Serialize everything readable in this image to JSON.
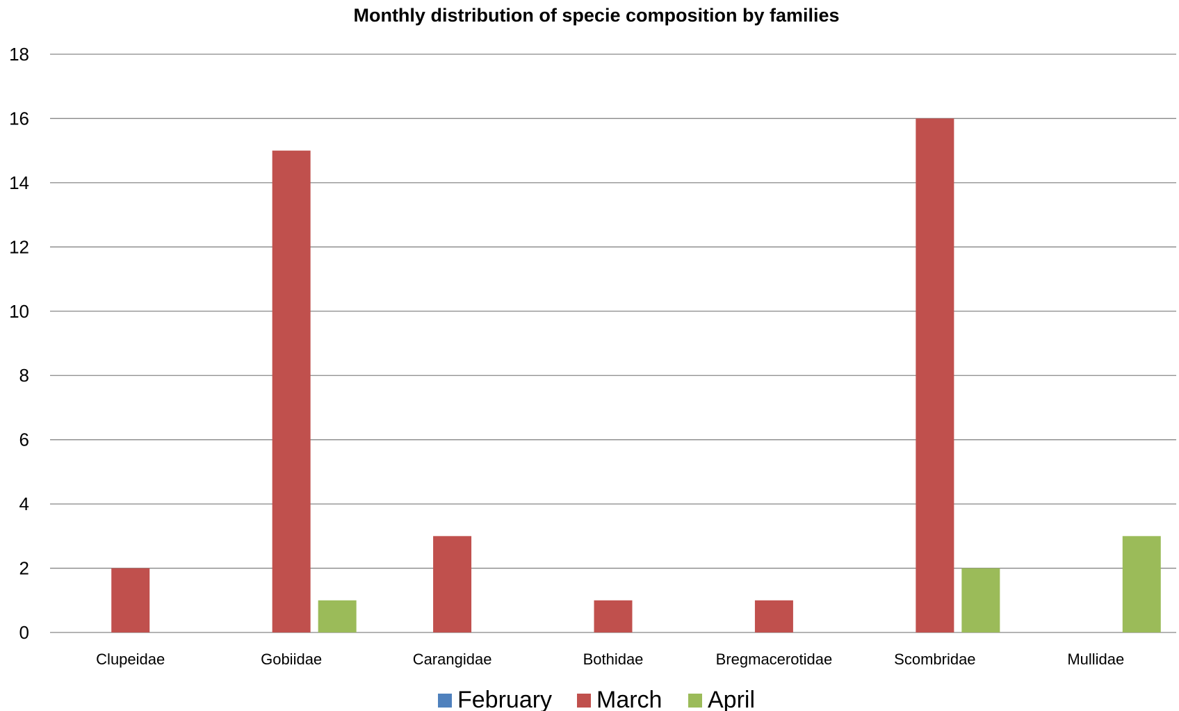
{
  "chart_data": {
    "type": "bar",
    "title": "Monthly distribution of specie composition by families",
    "xlabel": "",
    "ylabel": "",
    "categories": [
      "Clupeidae",
      "Gobiidae",
      "Carangidae",
      "Bothidae",
      "Bregmacerotidae",
      "Scombridae",
      "Mullidae"
    ],
    "series": [
      {
        "name": "February",
        "color": "#4F81BD",
        "values": [
          0,
          0,
          0,
          0,
          0,
          0,
          0
        ]
      },
      {
        "name": "March",
        "color": "#C0504D",
        "values": [
          2,
          15,
          3,
          1,
          1,
          16,
          0
        ]
      },
      {
        "name": "April",
        "color": "#9BBB59",
        "values": [
          0,
          1,
          0,
          0,
          0,
          2,
          3
        ]
      }
    ],
    "ylim": [
      0,
      18
    ],
    "yticks": [
      "0",
      "2",
      "4",
      "6",
      "8",
      "10",
      "12",
      "14",
      "16",
      "18"
    ],
    "grid": true,
    "legend_position": "bottom"
  }
}
